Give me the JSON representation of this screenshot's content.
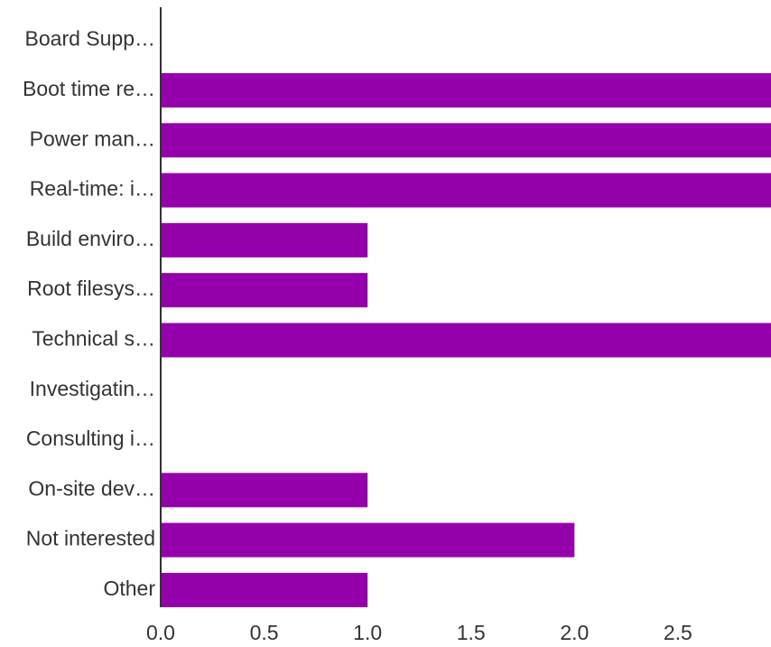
{
  "chart_data": {
    "type": "bar",
    "orientation": "horizontal",
    "title": "",
    "xlabel": "",
    "ylabel": "",
    "categories": [
      "Board Supp…",
      "Boot time re…",
      "Power man…",
      "Real-time: i…",
      "Build enviro…",
      "Root filesys…",
      "Technical s…",
      "Investigatin…",
      "Consulting i…",
      "On-site dev…",
      "Not interested",
      "Other"
    ],
    "values": [
      0,
      3,
      3,
      3,
      1,
      1,
      3,
      0,
      0,
      1,
      2,
      1
    ],
    "xlim": [
      0,
      2.95
    ],
    "xticks": [
      "0.0",
      "0.5",
      "1.0",
      "1.5",
      "2.0",
      "2.5"
    ],
    "bar_color": "#9400aa",
    "grid": false,
    "legend": "none"
  }
}
